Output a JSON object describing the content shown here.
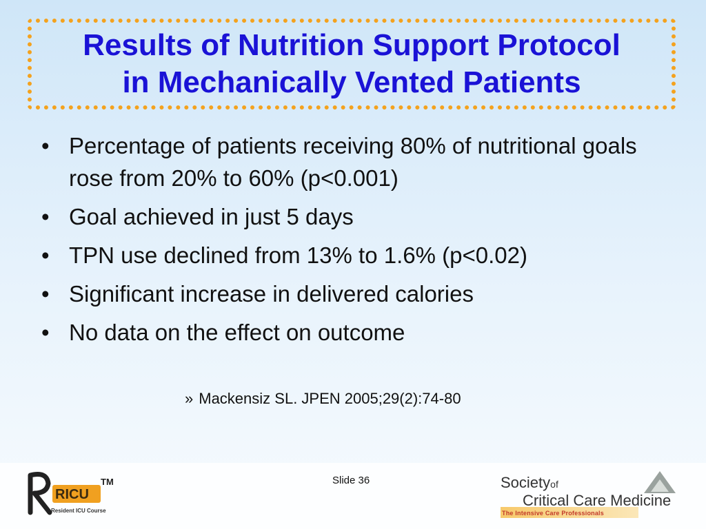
{
  "slide": {
    "title_lines": [
      "Results of Nutrition Support Protocol",
      "in Mechanically Vented Patients"
    ],
    "bullet_char": "•",
    "bullets": [
      "Percentage of patients receiving 80% of nutritional goals rose from 20% to 60% (p<0.001)",
      "Goal achieved in just 5 days",
      "TPN use declined from 13% to 1.6% (p<0.02)",
      "Significant increase in delivered calories",
      "No data on the effect on outcome"
    ],
    "reference_marker": "»",
    "reference": "Mackensiz SL. JPEN 2005;29(2):74-80",
    "slide_number": "Slide 36"
  },
  "logos": {
    "ricu": {
      "text": "RICU",
      "trademark": "TM",
      "subtitle": "Resident ICU Course"
    },
    "sccm": {
      "line1": "Society",
      "line1_of": "of",
      "line2": "Critical Care Medicine",
      "tagline": "The Intensive Care Professionals"
    }
  },
  "colors": {
    "title": "#1a12d6",
    "title_border": "#f4a21e",
    "background_top": "#cfe6f8",
    "background_bottom": "#f7fbfe"
  }
}
